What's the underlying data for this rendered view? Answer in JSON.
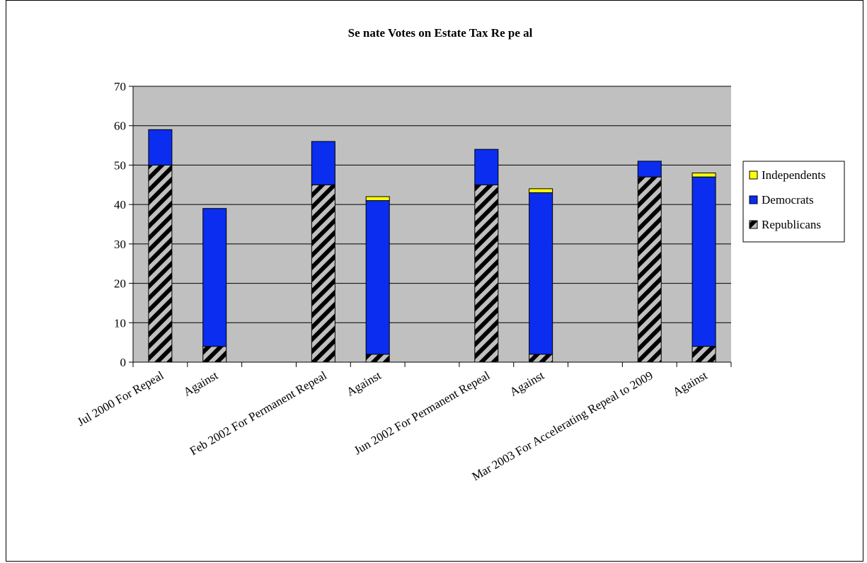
{
  "chart_data": {
    "type": "bar",
    "stacked": true,
    "title": "Se nate Votes on Estate Tax Re pe al",
    "xlabel": "",
    "ylabel": "",
    "ylim": [
      0,
      70
    ],
    "yticks": [
      "0",
      "10",
      "20",
      "30",
      "40",
      "50",
      "60",
      "70"
    ],
    "grid": true,
    "legend_position": "right",
    "categories": [
      "Jul 2000 For Repeal",
      "Against",
      "",
      "Feb 2002 For Permanent Repeal",
      "Against",
      "",
      "Jun 2002 For Permanent Repeal",
      "Against",
      "",
      "Mar 2003 For Accelerating Repeal to 2009",
      "Against"
    ],
    "series": [
      {
        "name": "Republicans",
        "color": "#c0c0c0",
        "pattern": "diagonal-stripes",
        "values": [
          50,
          4,
          0,
          45,
          2,
          0,
          45,
          2,
          0,
          47,
          4
        ]
      },
      {
        "name": "Democrats",
        "color": "#0a2df0",
        "values": [
          9,
          35,
          0,
          11,
          39,
          0,
          9,
          41,
          0,
          4,
          43
        ]
      },
      {
        "name": "Independents",
        "color": "#ffff00",
        "values": [
          0,
          0,
          0,
          0,
          1,
          0,
          0,
          1,
          0,
          0,
          1
        ]
      }
    ],
    "colors": {
      "plot_background": "#c0c0c0",
      "gridline": "#000000"
    }
  }
}
